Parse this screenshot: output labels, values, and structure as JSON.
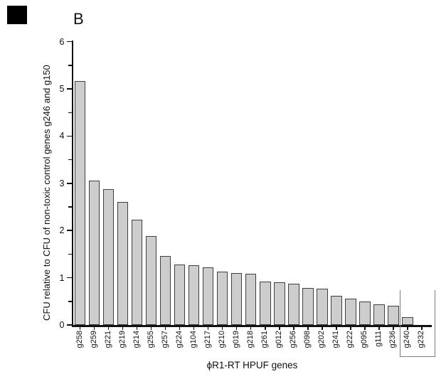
{
  "panel_label": "B",
  "colors": {
    "bar_fill": "#cdcdcd",
    "bar_border": "#3f3f3f",
    "axis": "#111111",
    "bracket": "#7d7d7d",
    "corner_box": "#000000",
    "background": "#ffffff"
  },
  "y_axis": {
    "title": "CFU relative to CFU of non-toxic control genes g246 and g150",
    "tick_labels": [
      "0",
      "1",
      "2",
      "3",
      "4",
      "5",
      "6"
    ]
  },
  "x_axis": {
    "title": "ϕR1-RT HPUF genes"
  },
  "chart_data": {
    "type": "bar",
    "title": "B",
    "xlabel": "ϕR1-RT HPUF genes",
    "ylabel": "CFU relative to CFU of non-toxic control genes g246 and g150",
    "categories": [
      "g258",
      "g259",
      "g221",
      "g219",
      "g214",
      "g255",
      "g257",
      "g224",
      "g104",
      "g217",
      "g210",
      "g019",
      "g218",
      "g261",
      "g012",
      "g256",
      "g098",
      "g202",
      "g241",
      "g222",
      "g095",
      "g111",
      "g236",
      "g240",
      "g232"
    ],
    "values": [
      5.17,
      3.05,
      2.87,
      2.61,
      2.23,
      1.88,
      1.46,
      1.28,
      1.27,
      1.22,
      1.13,
      1.1,
      1.08,
      0.92,
      0.9,
      0.87,
      0.79,
      0.77,
      0.62,
      0.55,
      0.5,
      0.44,
      0.41,
      0.17,
      0
    ],
    "ylim": [
      0,
      6
    ],
    "yticks": [
      0,
      1,
      2,
      3,
      4,
      5,
      6
    ],
    "minor_tick_step": 0.5,
    "grid": false,
    "legend": false,
    "boxed_categories": [
      "g240",
      "g232"
    ]
  }
}
